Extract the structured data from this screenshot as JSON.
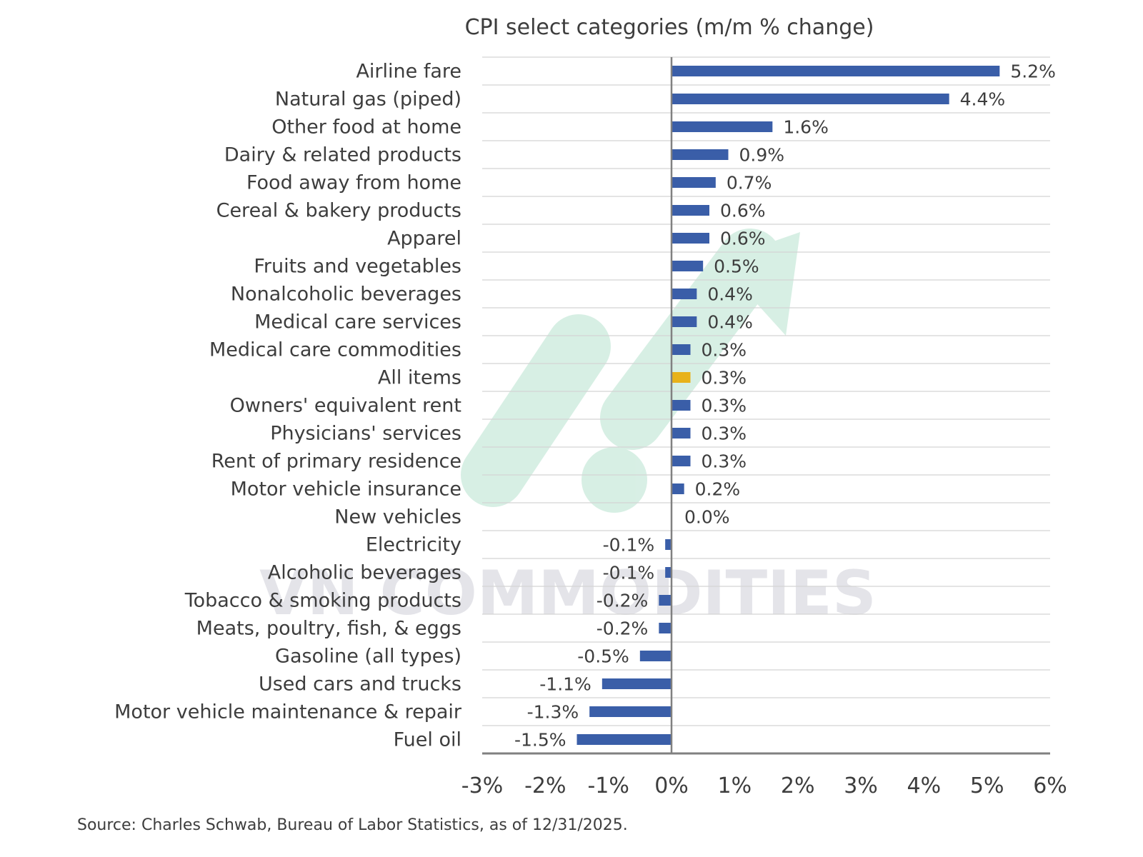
{
  "chart_data": {
    "type": "bar",
    "orientation": "horizontal",
    "title": "CPI select categories (m/m % change)",
    "xlabel": "",
    "ylabel": "",
    "xlim": [
      -3,
      6
    ],
    "x_ticks": [
      "-3%",
      "-2%",
      "-1%",
      "0%",
      "1%",
      "2%",
      "3%",
      "4%",
      "5%",
      "6%"
    ],
    "grid": "horizontal separators between categories",
    "categories": [
      "Airline fare",
      "Natural gas (piped)",
      "Other food at home",
      "Dairy & related products",
      "Food away from home",
      "Cereal & bakery products",
      "Apparel",
      "Fruits and vegetables",
      "Nonalcoholic beverages",
      "Medical care services",
      "Medical care commodities",
      "All items",
      "Owners' equivalent rent",
      "Physicians' services",
      "Rent of primary residence",
      "Motor vehicle insurance",
      "New vehicles",
      "Electricity",
      "Alcoholic beverages",
      "Tobacco & smoking products",
      "Meats, poultry, fish, & eggs",
      "Gasoline (all types)",
      "Used cars and trucks",
      "Motor vehicle maintenance & repair",
      "Fuel oil"
    ],
    "values": [
      5.2,
      4.4,
      1.6,
      0.9,
      0.7,
      0.6,
      0.6,
      0.5,
      0.4,
      0.4,
      0.3,
      0.3,
      0.3,
      0.3,
      0.3,
      0.2,
      0.0,
      -0.1,
      -0.1,
      -0.2,
      -0.2,
      -0.5,
      -1.1,
      -1.3,
      -1.5
    ],
    "value_labels": [
      "5.2%",
      "4.4%",
      "1.6%",
      "0.9%",
      "0.7%",
      "0.6%",
      "0.6%",
      "0.5%",
      "0.4%",
      "0.4%",
      "0.3%",
      "0.3%",
      "0.3%",
      "0.3%",
      "0.3%",
      "0.2%",
      "0.0%",
      "-0.1%",
      "-0.1%",
      "-0.2%",
      "-0.2%",
      "-0.5%",
      "-1.1%",
      "-1.3%",
      "-1.5%"
    ],
    "highlight_category": "All items",
    "colors": {
      "bar": "#3a5ea8",
      "highlight": "#e8b21a",
      "zero_line": "#808080",
      "grid": "#d4d4d4",
      "text": "#3d3d3d"
    }
  },
  "source_note": "Source: Charles Schwab, Bureau of Labor Statistics, as of  12/31/2025.",
  "watermark": {
    "text": "VN COMMODITIES",
    "colors": {
      "logo": "#b8e2cf",
      "text": "#d4d4dc"
    }
  }
}
